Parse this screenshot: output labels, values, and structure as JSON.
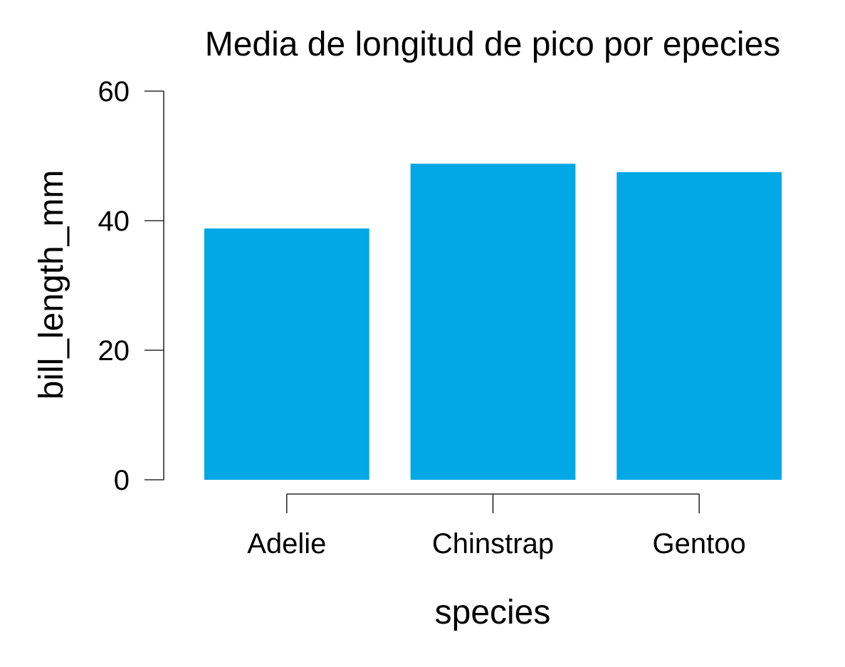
{
  "chart_data": {
    "type": "bar",
    "title": "Media de longitud de pico por epecies",
    "xlabel": "species",
    "ylabel": "bill_length_mm",
    "categories": [
      "Adelie",
      "Chinstrap",
      "Gentoo"
    ],
    "values": [
      38.8,
      48.8,
      47.5
    ],
    "ylim": [
      0,
      60
    ],
    "yticks": [
      0,
      20,
      40,
      60
    ],
    "bar_color": "#00A8E6",
    "grid": false,
    "legend": "none"
  }
}
